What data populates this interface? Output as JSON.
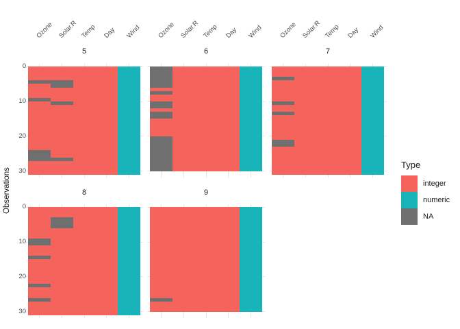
{
  "chart_data": {
    "type": "heatmap",
    "ylabel": "Observations",
    "x_categories": [
      "Ozone",
      "Solar.R",
      "Temp",
      "Day",
      "Wind"
    ],
    "column_types": {
      "Ozone": "integer",
      "Solar.R": "integer",
      "Temp": "integer",
      "Day": "integer",
      "Wind": "numeric"
    },
    "y_axis": {
      "ticks": [
        0,
        10,
        20,
        30
      ],
      "reversed": true,
      "rows_full_scale": 31
    },
    "facets": [
      {
        "label": "5",
        "rows": 31,
        "na_cells": {
          "Ozone": [
            5,
            10,
            25,
            26,
            27
          ],
          "Solar.R": [
            5,
            6,
            11,
            27
          ]
        }
      },
      {
        "label": "6",
        "rows": 30,
        "na_cells": {
          "Ozone": [
            1,
            2,
            3,
            4,
            5,
            6,
            8,
            11,
            12,
            14,
            15,
            21,
            22,
            23,
            24,
            25,
            26,
            27,
            28,
            29,
            30
          ]
        }
      },
      {
        "label": "7",
        "rows": 31,
        "na_cells": {
          "Ozone": [
            4,
            11,
            14,
            22,
            23
          ]
        }
      },
      {
        "label": "8",
        "rows": 31,
        "na_cells": {
          "Ozone": [
            10,
            11,
            15,
            23,
            27
          ],
          "Solar.R": [
            4,
            5,
            6
          ]
        }
      },
      {
        "label": "9",
        "rows": 30,
        "na_cells": {
          "Ozone": [
            27
          ]
        }
      }
    ],
    "legend": {
      "title": "Type",
      "position": "right",
      "entries": [
        {
          "label": "integer",
          "color": "#F5635D"
        },
        {
          "label": "numeric",
          "color": "#19B4BA"
        },
        {
          "label": "NA",
          "color": "#6F6F6F"
        }
      ]
    },
    "gridline_color": "#E6E6E6",
    "background": "#FFFFFF"
  }
}
